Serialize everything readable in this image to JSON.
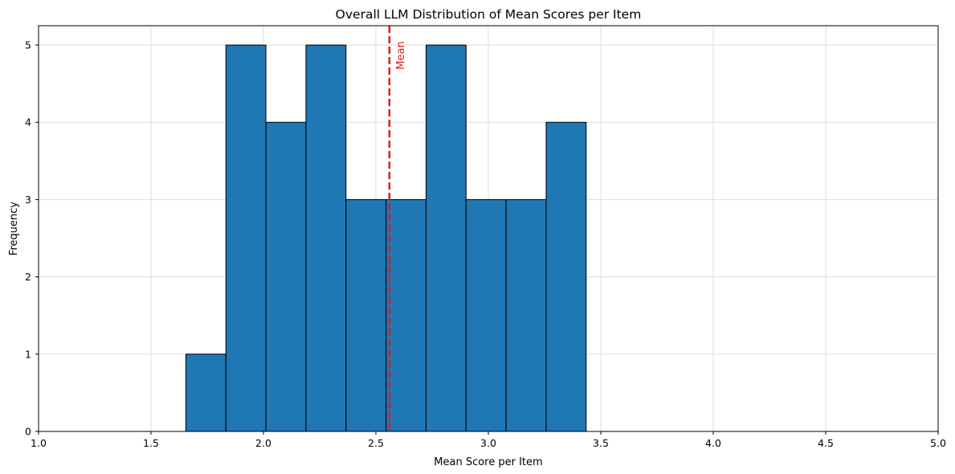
{
  "chart_data": {
    "type": "bar",
    "title": "Overall LLM Distribution of Mean Scores per Item",
    "xlabel": "Mean Score per Item",
    "ylabel": "Frequency",
    "xlim": [
      1.0,
      5.0
    ],
    "ylim": [
      0,
      5.25
    ],
    "xticks": [
      1.0,
      1.5,
      2.0,
      2.5,
      3.0,
      3.5,
      4.0,
      4.5,
      5.0
    ],
    "xtick_labels": [
      "1.0",
      "1.5",
      "2.0",
      "2.5",
      "3.0",
      "3.5",
      "4.0",
      "4.5",
      "5.0"
    ],
    "yticks": [
      0,
      1,
      2,
      3,
      4,
      5
    ],
    "ytick_labels": [
      "0",
      "1",
      "2",
      "3",
      "4",
      "5"
    ],
    "grid": true,
    "bins": [
      {
        "x0": 1.655,
        "x1": 1.833,
        "count": 1
      },
      {
        "x0": 1.833,
        "x1": 2.011,
        "count": 5
      },
      {
        "x0": 2.011,
        "x1": 2.189,
        "count": 4
      },
      {
        "x0": 2.189,
        "x1": 2.367,
        "count": 5
      },
      {
        "x0": 2.367,
        "x1": 2.545,
        "count": 3
      },
      {
        "x0": 2.545,
        "x1": 2.723,
        "count": 3
      },
      {
        "x0": 2.723,
        "x1": 2.901,
        "count": 5
      },
      {
        "x0": 2.901,
        "x1": 3.079,
        "count": 3
      },
      {
        "x0": 3.079,
        "x1": 3.257,
        "count": 3
      },
      {
        "x0": 3.257,
        "x1": 3.435,
        "count": 4
      }
    ],
    "mean_line": {
      "value": 2.56,
      "label": "Mean"
    },
    "colors": {
      "bar": "#1f77b4",
      "edge": "#000000",
      "mean": "#e41a1c",
      "grid": "#dddddd"
    }
  }
}
